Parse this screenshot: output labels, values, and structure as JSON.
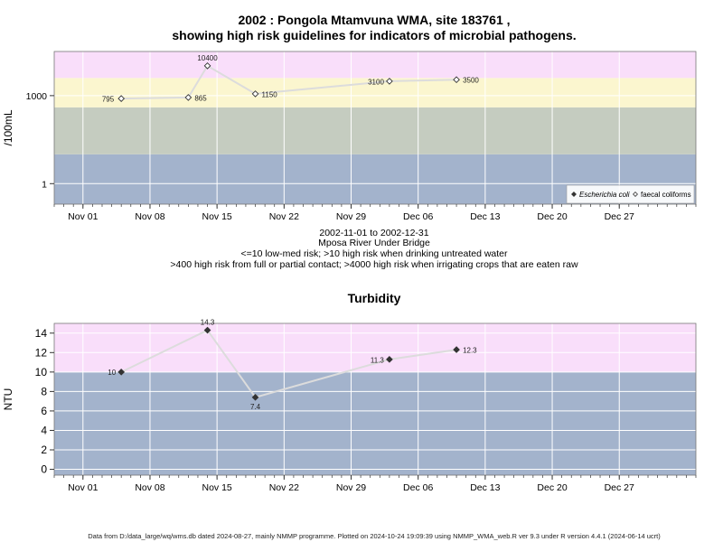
{
  "colors": {
    "band_magenta": "#f9defa",
    "band_yellow": "#fbf6cf",
    "band_green": "#c5ccc0",
    "band_blue": "#a3b3cc",
    "gridline": "#ffffff",
    "series_line": "#dcdcdc",
    "frame": "#777777"
  },
  "title": {
    "line1": "2002 : Pongola Mtamvuna WMA, site 183761 ,",
    "line2": "showing high risk guidelines for indicators of microbial pathogens."
  },
  "subtitle": {
    "date_range": "2002-11-01 to 2002-12-31",
    "site_name": "Mposa River Under Bridge",
    "note1": "<=10 low-med risk; >10 high risk when drinking untreated water",
    "note2": ">400 high risk from full or partial contact; >4000 high risk when irrigating crops that are eaten raw"
  },
  "footer": "Data from D:/data_large/wq/wms.db dated 2024-08-27, mainly NMMP programme. Plotted on 2024-10-24 19:09:39 using NMMP_WMA_web.R ver 9.3 under R version 4.4.1 (2024-06-14 ucrt)",
  "chart_data": [
    {
      "type": "line",
      "ylabel": "/100mL",
      "yscale": "log",
      "x_axis": {
        "range": [
          "2002-10-29",
          "2003-01-04"
        ],
        "ticks": [
          "2002-11-01",
          "2002-11-08",
          "2002-11-15",
          "2002-11-22",
          "2002-11-29",
          "2002-12-06",
          "2002-12-13",
          "2002-12-20",
          "2002-12-27"
        ],
        "tick_labels": [
          "Nov 01",
          "Nov 08",
          "Nov 15",
          "Nov 22",
          "Nov 29",
          "Dec 06",
          "Dec 13",
          "Dec 20",
          "Dec 27"
        ]
      },
      "y_axis": {
        "range": [
          0.2,
          32000
        ],
        "ticks": [
          1,
          1000
        ],
        "tick_labels": [
          "1",
          "1000"
        ]
      },
      "risk_bands": [
        {
          "from": 0.2,
          "to": 10,
          "color": "#a3b3cc"
        },
        {
          "from": 10,
          "to": 400,
          "color": "#c5ccc0"
        },
        {
          "from": 400,
          "to": 4000,
          "color": "#fbf6cf"
        },
        {
          "from": 4000,
          "to": 32000,
          "color": "#f9defa"
        }
      ],
      "series": [
        {
          "name": "faecal coliforms",
          "marker": "open-diamond",
          "x": [
            "2002-11-05",
            "2002-11-12",
            "2002-11-14",
            "2002-11-19",
            "2002-12-03",
            "2002-12-10"
          ],
          "values": [
            795,
            865,
            10400,
            1150,
            3100,
            3500
          ],
          "labels": [
            "795",
            "865",
            "10400",
            "1150",
            "3100",
            "3500"
          ]
        },
        {
          "name": "Escherichia coli",
          "marker": "filled-diamond",
          "x": [],
          "values": []
        }
      ],
      "legend": {
        "position": "bottom-right",
        "items": [
          "Escherichia coli",
          "faecal coliforms"
        ]
      },
      "grid": true
    },
    {
      "type": "line",
      "title": "Turbidity",
      "ylabel": "NTU",
      "x_axis": {
        "range": [
          "2002-10-29",
          "2003-01-04"
        ],
        "ticks": [
          "2002-11-01",
          "2002-11-08",
          "2002-11-15",
          "2002-11-22",
          "2002-11-29",
          "2002-12-06",
          "2002-12-13",
          "2002-12-20",
          "2002-12-27"
        ],
        "tick_labels": [
          "Nov 01",
          "Nov 08",
          "Nov 15",
          "Nov 22",
          "Nov 29",
          "Dec 06",
          "Dec 13",
          "Dec 20",
          "Dec 27"
        ]
      },
      "y_axis": {
        "range": [
          -0.6,
          15
        ],
        "ticks": [
          0,
          2,
          4,
          6,
          8,
          10,
          12,
          14
        ],
        "tick_labels": [
          "0",
          "2",
          "4",
          "6",
          "8",
          "10",
          "12",
          "14"
        ]
      },
      "risk_bands": [
        {
          "from": -0.6,
          "to": 10,
          "color": "#a3b3cc"
        },
        {
          "from": 10,
          "to": 15,
          "color": "#f9defa"
        }
      ],
      "series": [
        {
          "marker": "filled-diamond",
          "x": [
            "2002-11-05",
            "2002-11-14",
            "2002-11-19",
            "2002-12-03",
            "2002-12-10"
          ],
          "values": [
            10,
            14.3,
            7.4,
            11.3,
            12.3
          ],
          "labels": [
            "10",
            "14.3",
            "7.4",
            "11.3",
            "12.3"
          ]
        }
      ],
      "grid": true
    }
  ]
}
